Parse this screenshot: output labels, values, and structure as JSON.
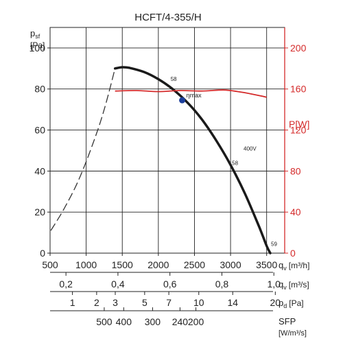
{
  "chart_data": {
    "type": "line",
    "title": "HCFT/4-355/H",
    "y_axis": {
      "label_main": "p",
      "label_sub": "sf",
      "unit": "[Pa]",
      "ticks": [
        0,
        20,
        40,
        60,
        80,
        100
      ],
      "range": [
        0,
        110
      ]
    },
    "power_axis": {
      "label": "P[W]",
      "ticks": [
        0,
        40,
        80,
        120,
        160,
        200
      ],
      "range": [
        0,
        220
      ],
      "color": "#d42a2a"
    },
    "x_axis": {
      "label": "q",
      "label_sub": "v",
      "unit": "[m³/h]",
      "ticks": [
        500,
        1000,
        1500,
        2000,
        2500,
        3000,
        3500
      ],
      "range": [
        500,
        3750
      ]
    },
    "secondary_scales": [
      {
        "label": "q",
        "label_sub": "v",
        "unit": "[m³/s]",
        "ticks": [
          {
            "label": "0,2",
            "at": 720
          },
          {
            "label": "0,4",
            "at": 1440
          },
          {
            "label": "0,6",
            "at": 2160
          },
          {
            "label": "0,8",
            "at": 2880
          },
          {
            "label": "1,0",
            "at": 3600
          }
        ]
      },
      {
        "label": "p",
        "label_sub": "d",
        "unit": "[Pa]",
        "ticks": [
          {
            "label": "1",
            "at": 810
          },
          {
            "label": "2",
            "at": 1145
          },
          {
            "label": "3",
            "at": 1403
          },
          {
            "label": "5",
            "at": 1810
          },
          {
            "label": "7",
            "at": 2145
          },
          {
            "label": "10",
            "at": 2560
          },
          {
            "label": "14",
            "at": 3030
          },
          {
            "label": "20",
            "at": 3620
          }
        ]
      },
      {
        "label": "SFP",
        "unit": "[W/m³/s]",
        "ticks": [
          {
            "label": "500",
            "at": 1250
          },
          {
            "label": "400",
            "at": 1520
          },
          {
            "label": "300",
            "at": 1920
          },
          {
            "label": "240",
            "at": 2300
          },
          {
            "label": "200",
            "at": 2520
          }
        ]
      }
    ],
    "series": [
      {
        "role": "fan-curve",
        "color": "#1a1a1a",
        "x": [
          1400,
          1500,
          1600,
          1800,
          2000,
          2200,
          2400,
          2600,
          2800,
          3000,
          3200,
          3400,
          3500,
          3550
        ],
        "y": [
          90,
          90.6,
          90.3,
          88.3,
          84.8,
          79.9,
          73.5,
          65.3,
          55.0,
          43.0,
          29.0,
          12.5,
          3.5,
          0
        ]
      },
      {
        "role": "unstable-region",
        "style": "dashed",
        "color": "#333333",
        "x": [
          510,
          700,
          900,
          1100,
          1250,
          1400
        ],
        "y": [
          11,
          22,
          36,
          54,
          70,
          90
        ]
      },
      {
        "role": "power",
        "name": "400V",
        "color": "#d42a2a",
        "axis": "power",
        "x": [
          1400,
          1700,
          2000,
          2300,
          2600,
          2900,
          3100,
          3300,
          3500
        ],
        "y": [
          158,
          158.5,
          157.5,
          158.5,
          158,
          159,
          157.5,
          155,
          152
        ]
      }
    ],
    "markers": [
      {
        "name": "ηmax",
        "x": 2330,
        "y": 74.5,
        "color": "#1c3f9c"
      }
    ],
    "annotations": [
      {
        "text": "58",
        "x": 2170,
        "y": 84
      },
      {
        "text": "58",
        "x": 3020,
        "y": 43
      },
      {
        "text": "59",
        "x": 3560,
        "y": 3.5
      },
      {
        "text": "400V",
        "x": 3180,
        "y": 50,
        "color": "#d42a2a"
      }
    ],
    "grid": true
  }
}
